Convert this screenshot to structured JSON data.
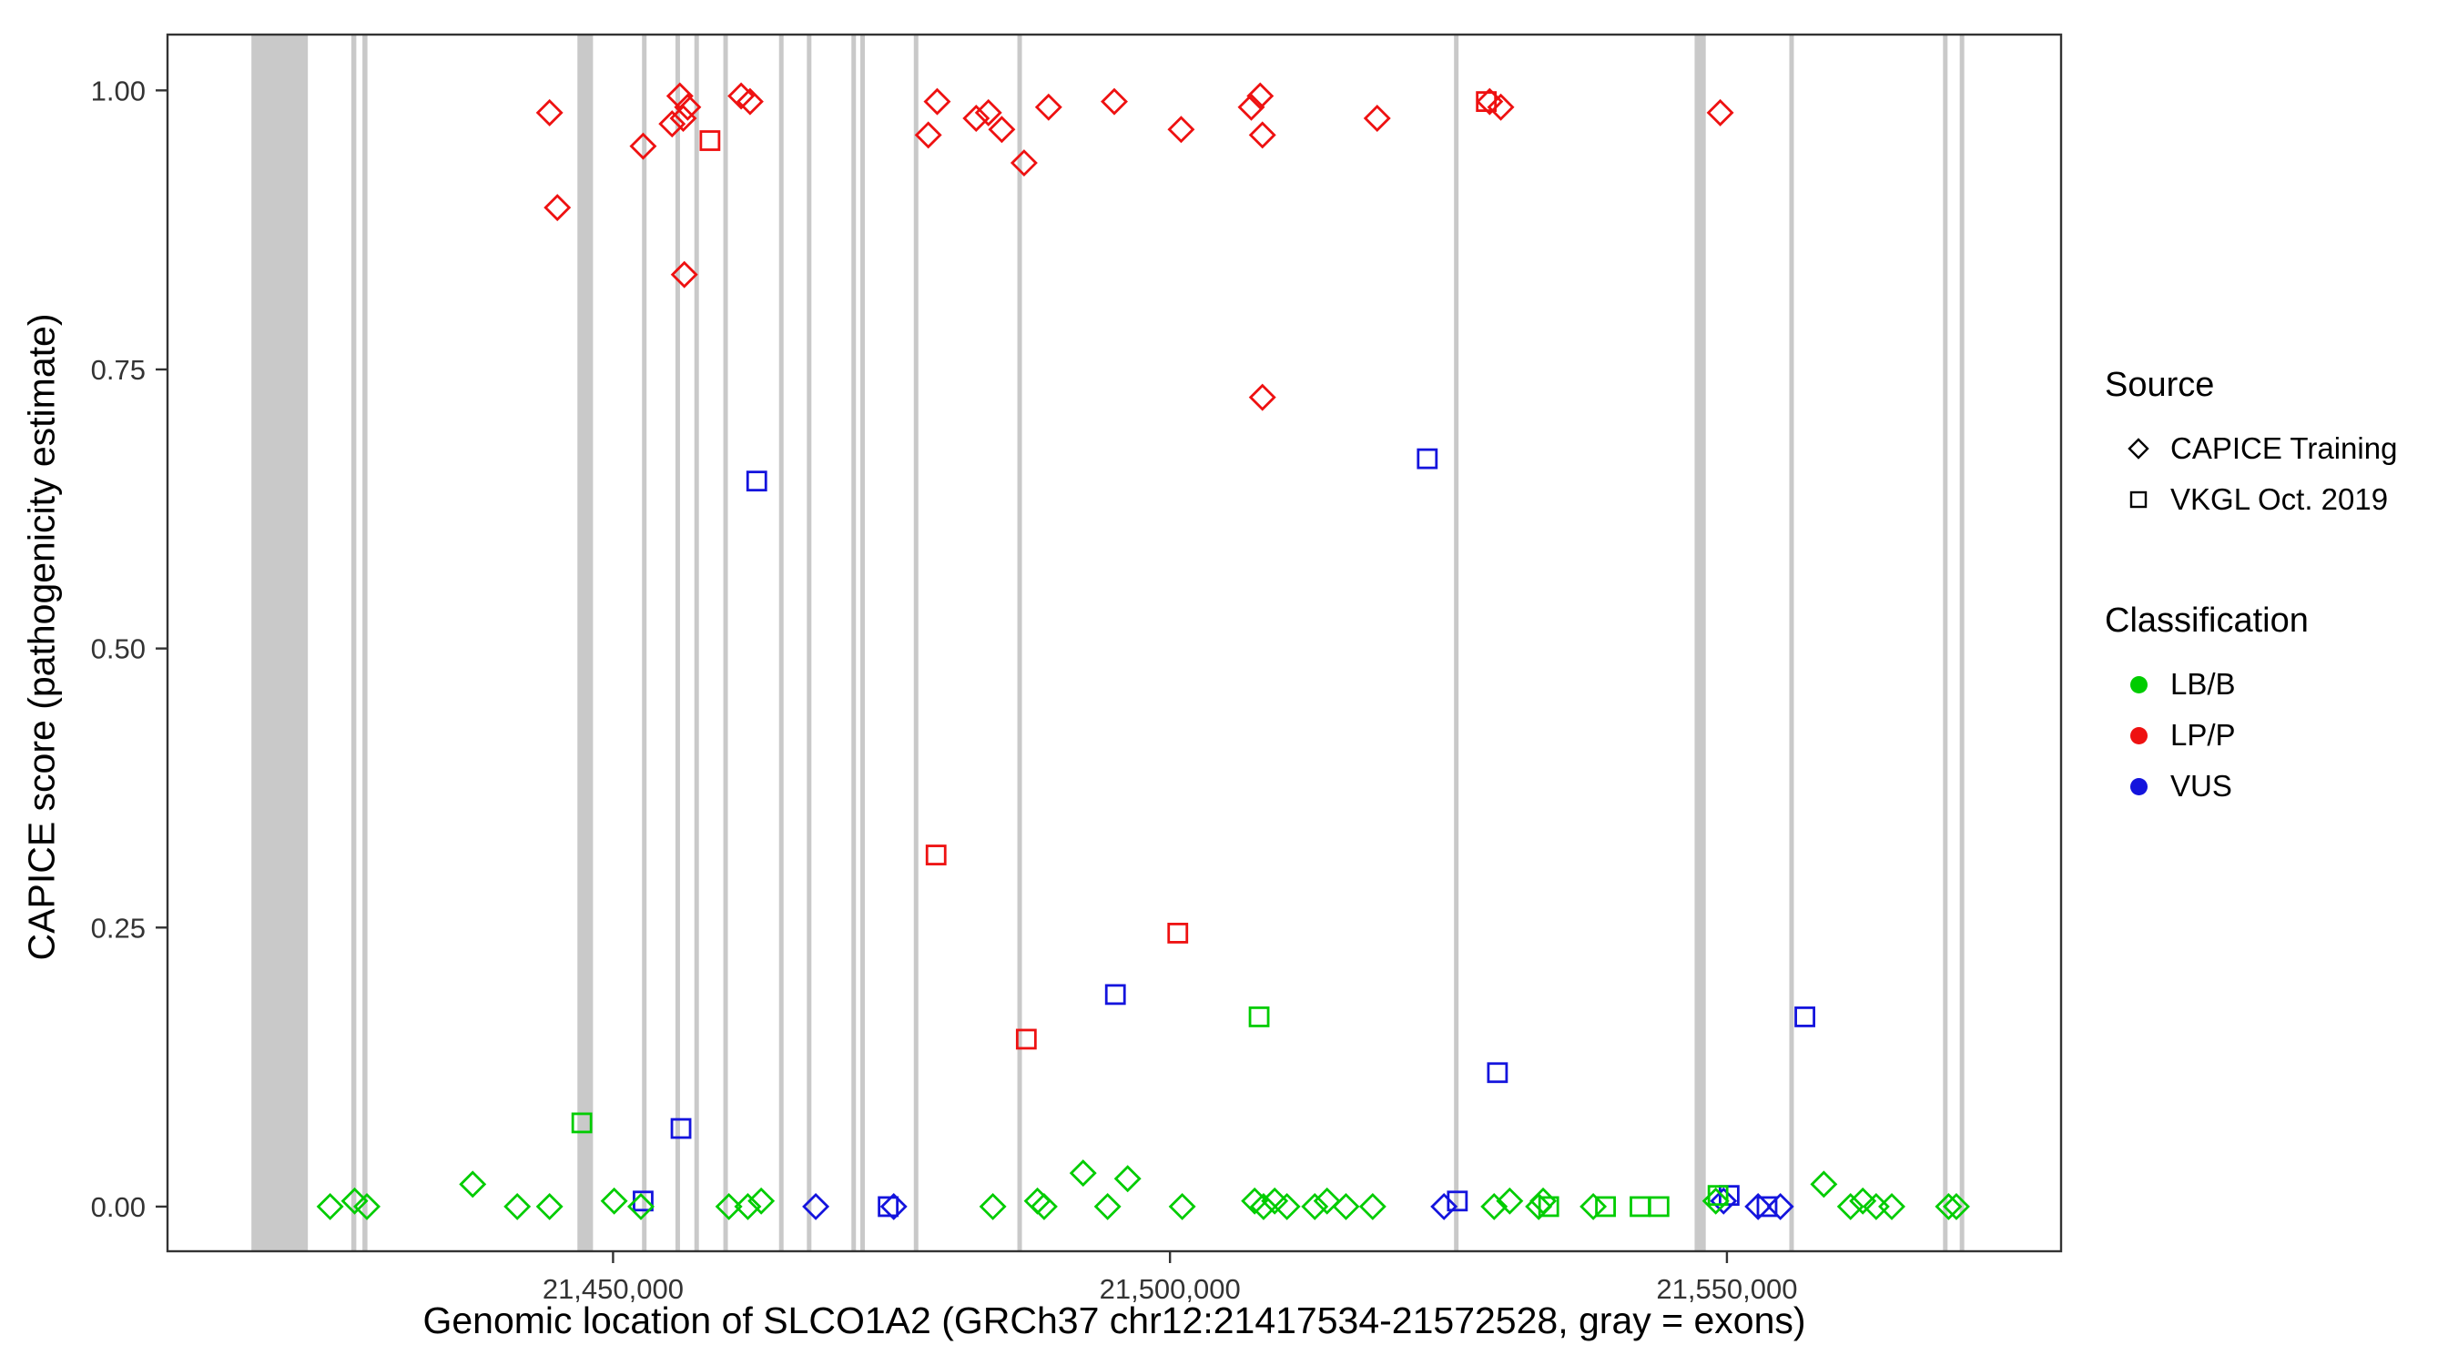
{
  "chart_data": {
    "type": "scatter",
    "title": "",
    "xlabel": "Genomic location of SLCO1A2 (GRCh37 chr12:21417534-21572528, gray = exons)",
    "ylabel": "CAPICE score (pathogenicity estimate)",
    "xlim": [
      21410000,
      21580000
    ],
    "ylim": [
      -0.04,
      1.05
    ],
    "grid": "off",
    "exon_color": "#c9c9c9",
    "x_ticks": [
      {
        "value": 21450000,
        "label": "21,450,000"
      },
      {
        "value": 21500000,
        "label": "21,500,000"
      },
      {
        "value": 21550000,
        "label": "21,550,000"
      }
    ],
    "y_ticks": [
      {
        "value": 0.0,
        "label": "0.00"
      },
      {
        "value": 0.25,
        "label": "0.25"
      },
      {
        "value": 0.5,
        "label": "0.50"
      },
      {
        "value": 0.75,
        "label": "0.75"
      },
      {
        "value": 1.0,
        "label": "1.00"
      }
    ],
    "legend": {
      "source_title": "Source",
      "sources": [
        {
          "name": "CAPICE Training",
          "shape": "diamond"
        },
        {
          "name": "VKGL Oct. 2019",
          "shape": "square"
        }
      ],
      "classification_title": "Classification",
      "classifications": [
        {
          "name": "LB/B",
          "color": "#00cc00"
        },
        {
          "name": "LP/P",
          "color": "#ee1111"
        },
        {
          "name": "VUS",
          "color": "#1414dd"
        }
      ]
    },
    "exons": [
      [
        21417534,
        21422600
      ],
      [
        21426500,
        21426950
      ],
      [
        21427500,
        21427950
      ],
      [
        21446800,
        21448200
      ],
      [
        21452600,
        21452950
      ],
      [
        21455600,
        21455950
      ],
      [
        21457300,
        21457650
      ],
      [
        21459900,
        21460250
      ],
      [
        21464900,
        21465250
      ],
      [
        21467400,
        21467800
      ],
      [
        21471400,
        21471800
      ],
      [
        21472200,
        21472550
      ],
      [
        21477000,
        21477400
      ],
      [
        21486300,
        21486700
      ],
      [
        21525500,
        21525900
      ],
      [
        21547100,
        21548100
      ],
      [
        21555600,
        21556000
      ],
      [
        21569400,
        21569800
      ],
      [
        21570900,
        21571300
      ]
    ],
    "points": [
      {
        "x": 21444300,
        "y": 0.98,
        "s": "diamond",
        "c": "LP/P"
      },
      {
        "x": 21445000,
        "y": 0.895,
        "s": "diamond",
        "c": "LP/P"
      },
      {
        "x": 21452700,
        "y": 0.95,
        "s": "diamond",
        "c": "LP/P"
      },
      {
        "x": 21455300,
        "y": 0.97,
        "s": "diamond",
        "c": "LP/P"
      },
      {
        "x": 21456000,
        "y": 0.995,
        "s": "diamond",
        "c": "LP/P"
      },
      {
        "x": 21456700,
        "y": 0.985,
        "s": "diamond",
        "c": "LP/P"
      },
      {
        "x": 21456300,
        "y": 0.975,
        "s": "diamond",
        "c": "LP/P"
      },
      {
        "x": 21456400,
        "y": 0.835,
        "s": "diamond",
        "c": "LP/P"
      },
      {
        "x": 21461500,
        "y": 0.995,
        "s": "diamond",
        "c": "LP/P"
      },
      {
        "x": 21462300,
        "y": 0.99,
        "s": "diamond",
        "c": "LP/P"
      },
      {
        "x": 21478300,
        "y": 0.96,
        "s": "diamond",
        "c": "LP/P"
      },
      {
        "x": 21479100,
        "y": 0.99,
        "s": "diamond",
        "c": "LP/P"
      },
      {
        "x": 21482600,
        "y": 0.975,
        "s": "diamond",
        "c": "LP/P"
      },
      {
        "x": 21483700,
        "y": 0.98,
        "s": "diamond",
        "c": "LP/P"
      },
      {
        "x": 21484900,
        "y": 0.965,
        "s": "diamond",
        "c": "LP/P"
      },
      {
        "x": 21486900,
        "y": 0.935,
        "s": "diamond",
        "c": "LP/P"
      },
      {
        "x": 21489100,
        "y": 0.985,
        "s": "diamond",
        "c": "LP/P"
      },
      {
        "x": 21495000,
        "y": 0.99,
        "s": "diamond",
        "c": "LP/P"
      },
      {
        "x": 21501000,
        "y": 0.965,
        "s": "diamond",
        "c": "LP/P"
      },
      {
        "x": 21507300,
        "y": 0.985,
        "s": "diamond",
        "c": "LP/P"
      },
      {
        "x": 21508100,
        "y": 0.995,
        "s": "diamond",
        "c": "LP/P"
      },
      {
        "x": 21508300,
        "y": 0.96,
        "s": "diamond",
        "c": "LP/P"
      },
      {
        "x": 21508300,
        "y": 0.725,
        "s": "diamond",
        "c": "LP/P"
      },
      {
        "x": 21518600,
        "y": 0.975,
        "s": "diamond",
        "c": "LP/P"
      },
      {
        "x": 21528700,
        "y": 0.99,
        "s": "diamond",
        "c": "LP/P"
      },
      {
        "x": 21529700,
        "y": 0.985,
        "s": "diamond",
        "c": "LP/P"
      },
      {
        "x": 21549400,
        "y": 0.98,
        "s": "diamond",
        "c": "LP/P"
      },
      {
        "x": 21458700,
        "y": 0.955,
        "s": "square",
        "c": "LP/P"
      },
      {
        "x": 21479000,
        "y": 0.315,
        "s": "square",
        "c": "LP/P"
      },
      {
        "x": 21487100,
        "y": 0.15,
        "s": "square",
        "c": "LP/P"
      },
      {
        "x": 21500700,
        "y": 0.245,
        "s": "square",
        "c": "LP/P"
      },
      {
        "x": 21528400,
        "y": 0.99,
        "s": "square",
        "c": "LP/P"
      },
      {
        "x": 21462900,
        "y": 0.65,
        "s": "square",
        "c": "VUS"
      },
      {
        "x": 21456100,
        "y": 0.07,
        "s": "square",
        "c": "VUS"
      },
      {
        "x": 21495100,
        "y": 0.19,
        "s": "square",
        "c": "VUS"
      },
      {
        "x": 21523100,
        "y": 0.67,
        "s": "square",
        "c": "VUS"
      },
      {
        "x": 21529400,
        "y": 0.12,
        "s": "square",
        "c": "VUS"
      },
      {
        "x": 21557000,
        "y": 0.17,
        "s": "square",
        "c": "VUS"
      },
      {
        "x": 21452700,
        "y": 0.005,
        "s": "square",
        "c": "VUS"
      },
      {
        "x": 21474700,
        "y": 0.0,
        "s": "square",
        "c": "VUS"
      },
      {
        "x": 21525800,
        "y": 0.005,
        "s": "square",
        "c": "VUS"
      },
      {
        "x": 21550200,
        "y": 0.01,
        "s": "square",
        "c": "VUS"
      },
      {
        "x": 21553600,
        "y": 0.0,
        "s": "square",
        "c": "VUS"
      },
      {
        "x": 21468200,
        "y": 0.0,
        "s": "diamond",
        "c": "VUS"
      },
      {
        "x": 21475200,
        "y": 0.0,
        "s": "diamond",
        "c": "VUS"
      },
      {
        "x": 21524600,
        "y": 0.0,
        "s": "diamond",
        "c": "VUS"
      },
      {
        "x": 21549700,
        "y": 0.005,
        "s": "diamond",
        "c": "VUS"
      },
      {
        "x": 21552800,
        "y": 0.0,
        "s": "diamond",
        "c": "VUS"
      },
      {
        "x": 21554800,
        "y": 0.0,
        "s": "diamond",
        "c": "VUS"
      },
      {
        "x": 21424600,
        "y": 0.0,
        "s": "diamond",
        "c": "LB/B"
      },
      {
        "x": 21426800,
        "y": 0.005,
        "s": "diamond",
        "c": "LB/B"
      },
      {
        "x": 21427900,
        "y": 0.0,
        "s": "diamond",
        "c": "LB/B"
      },
      {
        "x": 21437400,
        "y": 0.02,
        "s": "diamond",
        "c": "LB/B"
      },
      {
        "x": 21441400,
        "y": 0.0,
        "s": "diamond",
        "c": "LB/B"
      },
      {
        "x": 21444300,
        "y": 0.0,
        "s": "diamond",
        "c": "LB/B"
      },
      {
        "x": 21450100,
        "y": 0.005,
        "s": "diamond",
        "c": "LB/B"
      },
      {
        "x": 21452500,
        "y": 0.0,
        "s": "diamond",
        "c": "LB/B"
      },
      {
        "x": 21460400,
        "y": 0.0,
        "s": "diamond",
        "c": "LB/B"
      },
      {
        "x": 21462100,
        "y": 0.0,
        "s": "diamond",
        "c": "LB/B"
      },
      {
        "x": 21463300,
        "y": 0.005,
        "s": "diamond",
        "c": "LB/B"
      },
      {
        "x": 21484100,
        "y": 0.0,
        "s": "diamond",
        "c": "LB/B"
      },
      {
        "x": 21488100,
        "y": 0.005,
        "s": "diamond",
        "c": "LB/B"
      },
      {
        "x": 21488700,
        "y": 0.0,
        "s": "diamond",
        "c": "LB/B"
      },
      {
        "x": 21492200,
        "y": 0.03,
        "s": "diamond",
        "c": "LB/B"
      },
      {
        "x": 21494400,
        "y": 0.0,
        "s": "diamond",
        "c": "LB/B"
      },
      {
        "x": 21496200,
        "y": 0.025,
        "s": "diamond",
        "c": "LB/B"
      },
      {
        "x": 21501100,
        "y": 0.0,
        "s": "diamond",
        "c": "LB/B"
      },
      {
        "x": 21507600,
        "y": 0.005,
        "s": "diamond",
        "c": "LB/B"
      },
      {
        "x": 21508400,
        "y": 0.0,
        "s": "diamond",
        "c": "LB/B"
      },
      {
        "x": 21509400,
        "y": 0.005,
        "s": "diamond",
        "c": "LB/B"
      },
      {
        "x": 21510500,
        "y": 0.0,
        "s": "diamond",
        "c": "LB/B"
      },
      {
        "x": 21513000,
        "y": 0.0,
        "s": "diamond",
        "c": "LB/B"
      },
      {
        "x": 21514100,
        "y": 0.005,
        "s": "diamond",
        "c": "LB/B"
      },
      {
        "x": 21515800,
        "y": 0.0,
        "s": "diamond",
        "c": "LB/B"
      },
      {
        "x": 21518200,
        "y": 0.0,
        "s": "diamond",
        "c": "LB/B"
      },
      {
        "x": 21529100,
        "y": 0.0,
        "s": "diamond",
        "c": "LB/B"
      },
      {
        "x": 21530500,
        "y": 0.005,
        "s": "diamond",
        "c": "LB/B"
      },
      {
        "x": 21533100,
        "y": 0.0,
        "s": "diamond",
        "c": "LB/B"
      },
      {
        "x": 21533500,
        "y": 0.005,
        "s": "diamond",
        "c": "LB/B"
      },
      {
        "x": 21538000,
        "y": 0.0,
        "s": "diamond",
        "c": "LB/B"
      },
      {
        "x": 21549000,
        "y": 0.005,
        "s": "diamond",
        "c": "LB/B"
      },
      {
        "x": 21558700,
        "y": 0.02,
        "s": "diamond",
        "c": "LB/B"
      },
      {
        "x": 21561100,
        "y": 0.0,
        "s": "diamond",
        "c": "LB/B"
      },
      {
        "x": 21562200,
        "y": 0.005,
        "s": "diamond",
        "c": "LB/B"
      },
      {
        "x": 21563400,
        "y": 0.0,
        "s": "diamond",
        "c": "LB/B"
      },
      {
        "x": 21564800,
        "y": 0.0,
        "s": "diamond",
        "c": "LB/B"
      },
      {
        "x": 21569900,
        "y": 0.0,
        "s": "diamond",
        "c": "LB/B"
      },
      {
        "x": 21570600,
        "y": 0.0,
        "s": "diamond",
        "c": "LB/B"
      },
      {
        "x": 21447200,
        "y": 0.075,
        "s": "square",
        "c": "LB/B"
      },
      {
        "x": 21508000,
        "y": 0.17,
        "s": "square",
        "c": "LB/B"
      },
      {
        "x": 21534000,
        "y": 0.0,
        "s": "square",
        "c": "LB/B"
      },
      {
        "x": 21539100,
        "y": 0.0,
        "s": "square",
        "c": "LB/B"
      },
      {
        "x": 21542200,
        "y": 0.0,
        "s": "square",
        "c": "LB/B"
      },
      {
        "x": 21543900,
        "y": 0.0,
        "s": "square",
        "c": "LB/B"
      },
      {
        "x": 21549200,
        "y": 0.01,
        "s": "square",
        "c": "LB/B"
      }
    ]
  }
}
